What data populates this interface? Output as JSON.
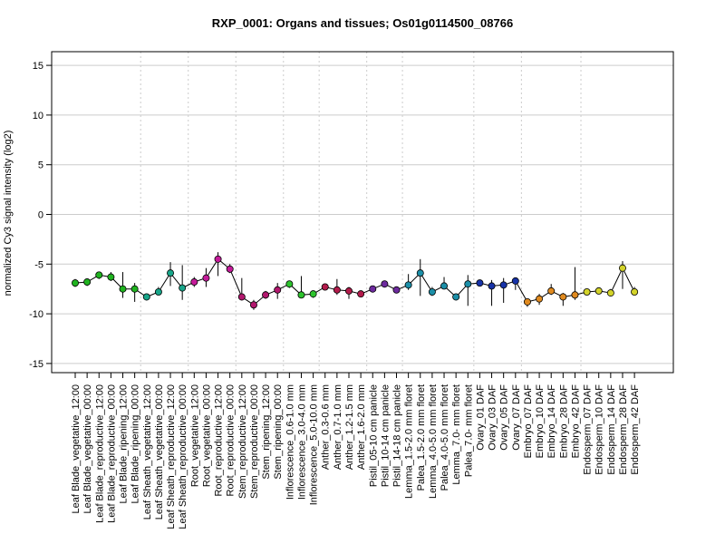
{
  "chart_data": {
    "type": "line",
    "title": "RXP_0001: Organs and tissues; Os01g0114500_08766",
    "xlabel": "",
    "ylabel": "normalized Cy3 signal intensity (log2)",
    "ylim": [
      -16,
      16.2
    ],
    "yticks": [
      -15,
      -10,
      -5,
      0,
      5,
      10,
      15
    ],
    "ytick_labels": [
      "-15",
      "-10",
      "-5",
      "0",
      "5",
      "10",
      "15"
    ],
    "horizontal_grid": true,
    "group_separators": true,
    "categories": [
      "Leaf Blade_vegetative_12:00",
      "Leaf Blade_vegetative_00:00",
      "Leaf Blade_reproductive_12:00",
      "Leaf Blade_reproductive_00:00",
      "Leaf Blade_ripening_12:00",
      "Leaf Blade_ripening_00:00",
      "Leaf Sheath_vegetative_12:00",
      "Leaf Sheath_vegetative_00:00",
      "Leaf Sheath_reproductive_12:00",
      "Leaf Sheath_reproductive_00:00",
      "Root_vegetative_12:00",
      "Root_vegetative_00:00",
      "Root_reproductive_12:00",
      "Root_reproductive_00:00",
      "Stem_reproductive_12:00",
      "Stem_reproductive_00:00",
      "Stem_ripening_12:00",
      "Stem_ripening_00:00",
      "Inflorescence_0.6-1.0 mm",
      "Inflorescence_3.0-4.0 mm",
      "Inflorescence_5.0-10.0 mm",
      "Anther_0.3-0.6 mm",
      "Anther_0.7-1.0 mm",
      "Anther_1.2-1.5 mm",
      "Anther_1.6-2.0 mm",
      "Pistil_05-10 cm panicle",
      "Pistil_10-14 cm panicle",
      "Pistil_14-18 cm panicle",
      "Lemma_1.5-2.0 mm floret",
      "Palea_1.5-2.0 mm floret",
      "Lemma_4.0-5.0 mm floret",
      "Palea_4.0-5.0 mm floret",
      "Lemma_7.0- mm floret",
      "Palea_7.0- mm floret",
      "Ovary_01 DAF",
      "Ovary_03 DAF",
      "Ovary_05 DAF",
      "Ovary_07 DAF",
      "Embryo_07 DAF",
      "Embryo_10 DAF",
      "Embryo_14 DAF",
      "Embryo_28 DAF",
      "Embryo_42 DAF",
      "Endosperm_07 DAF",
      "Endosperm_10 DAF",
      "Endosperm_14 DAF",
      "Endosperm_28 DAF",
      "Endosperm_42 DAF"
    ],
    "values": [
      -6.9,
      -6.8,
      -6.1,
      -6.3,
      -7.5,
      -7.5,
      -8.3,
      -7.8,
      -5.9,
      -7.4,
      -6.8,
      -6.4,
      -4.5,
      -5.5,
      -8.3,
      -9.1,
      -8.1,
      -7.6,
      -7.0,
      -8.1,
      -8.0,
      -7.3,
      -7.6,
      -7.7,
      -8.0,
      -7.5,
      -7.0,
      -7.6,
      -7.1,
      -5.9,
      -7.8,
      -7.2,
      -8.3,
      -7.0,
      -6.9,
      -7.2,
      -7.1,
      -6.7,
      -8.8,
      -8.5,
      -7.7,
      -8.3,
      -8.1,
      -7.8,
      -7.7,
      -7.9,
      -5.4,
      -7.8
    ],
    "err_high": [
      -6.5,
      -6.5,
      -5.9,
      -5.8,
      -5.8,
      -6.9,
      -8.0,
      -7.3,
      -4.8,
      -5.1,
      -6.3,
      -5.4,
      -3.8,
      -5.0,
      -6.4,
      -8.6,
      -7.7,
      -6.9,
      -6.8,
      -6.2,
      -7.7,
      -7.1,
      -6.5,
      -7.3,
      -7.9,
      -7.3,
      -6.9,
      -7.4,
      -6.0,
      -4.5,
      -7.3,
      -6.3,
      -8.0,
      -6.1,
      -6.6,
      -6.6,
      -6.4,
      -6.5,
      -8.5,
      -8.0,
      -7.0,
      -7.9,
      -5.3,
      -7.6,
      -7.5,
      -7.5,
      -4.7,
      -7.3
    ],
    "err_low": [
      -7.3,
      -7.2,
      -6.5,
      -6.7,
      -8.4,
      -8.8,
      -8.5,
      -8.1,
      -7.2,
      -8.6,
      -7.3,
      -7.3,
      -6.2,
      -5.9,
      -8.5,
      -9.6,
      -8.5,
      -8.5,
      -7.4,
      -8.4,
      -8.4,
      -7.5,
      -8.1,
      -8.5,
      -8.1,
      -7.8,
      -7.2,
      -7.8,
      -7.6,
      -8.2,
      -8.2,
      -7.5,
      -8.6,
      -9.2,
      -7.2,
      -9.2,
      -8.9,
      -7.6,
      -9.3,
      -9.1,
      -8.1,
      -9.2,
      -8.6,
      -8.1,
      -8.0,
      -8.1,
      -7.5,
      -8.0
    ],
    "point_colors": [
      "#1fb31f",
      "#1fb31f",
      "#1fb31f",
      "#1fb31f",
      "#1fb31f",
      "#1fb31f",
      "#17a589",
      "#17a589",
      "#17a589",
      "#17a589",
      "#c51b9a",
      "#c51b9a",
      "#c51b9a",
      "#c51b9a",
      "#b2186e",
      "#b2186e",
      "#b2186e",
      "#b2186e",
      "#2dc32d",
      "#2dc32d",
      "#2dc32d",
      "#b21b4b",
      "#b21b4b",
      "#b21b4b",
      "#b21b4b",
      "#6d2a9e",
      "#6d2a9e",
      "#6d2a9e",
      "#1c8fa8",
      "#1c8fa8",
      "#1c8fa8",
      "#1c8fa8",
      "#1c8fa8",
      "#1c8fa8",
      "#1733a8",
      "#1733a8",
      "#1733a8",
      "#1733a8",
      "#e08a1f",
      "#e08a1f",
      "#e08a1f",
      "#e08a1f",
      "#e08a1f",
      "#d3d32a",
      "#d3d32a",
      "#d3d32a",
      "#d3d32a",
      "#d3d32a"
    ],
    "line_color": "#000000",
    "grid_color": "#cccccc"
  }
}
